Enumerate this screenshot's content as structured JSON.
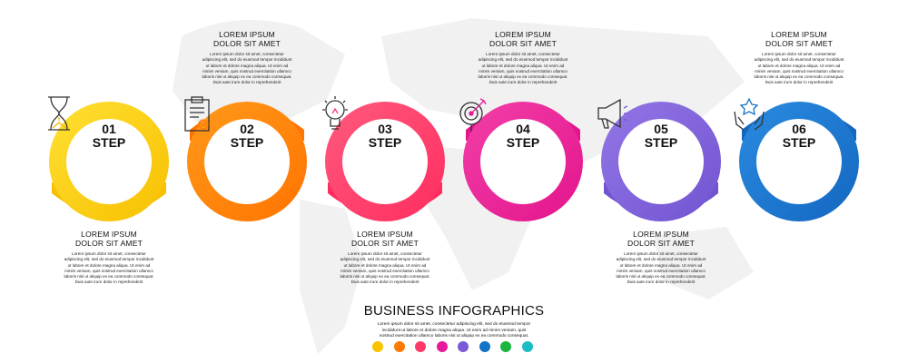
{
  "title": "BUSINESS INFOGRAPHICS",
  "description": [
    "Lorem ipsum dolor sit amet, consectetur adipiscing elit, sed do eiusmod tempor",
    "incididunt ut labore et dolore magna aliqua. Ut enim ad minim veniam, quis",
    "nostrud exercitation ullamco laboris nisi ut aliquip ex ea commodo consequat."
  ],
  "palette": [
    "#f9c300",
    "#ff7a00",
    "#ff3a6a",
    "#e8199a",
    "#7a5ad6",
    "#1473c6",
    "#1bb53f",
    "#1bbcc6"
  ],
  "steps": [
    {
      "number": "01",
      "label": "STEP",
      "icon": "hourglass-icon",
      "color": "#f7c000",
      "light": "#ffe033",
      "flap": "bottom",
      "heading": [
        "LOREM IPSUM",
        "DOLOR SIT AMET"
      ]
    },
    {
      "number": "02",
      "label": "STEP",
      "icon": "clipboard-icon",
      "color": "#ff7300",
      "light": "#ff9a1a",
      "flap": "top",
      "heading": [
        "LOREM IPSUM",
        "DOLOR SIT AMET"
      ]
    },
    {
      "number": "03",
      "label": "STEP",
      "icon": "lightbulb-icon",
      "color": "#ff2d5f",
      "light": "#ff5a7e",
      "flap": "bottom",
      "heading": [
        "LOREM IPSUM",
        "DOLOR SIT AMET"
      ]
    },
    {
      "number": "04",
      "label": "STEP",
      "icon": "target-icon",
      "color": "#e3148c",
      "light": "#f23fa8",
      "flap": "top",
      "heading": [
        "LOREM IPSUM",
        "DOLOR SIT AMET"
      ]
    },
    {
      "number": "05",
      "label": "STEP",
      "icon": "megaphone-icon",
      "color": "#7153d1",
      "light": "#9377e6",
      "flap": "bottom",
      "heading": [
        "LOREM IPSUM",
        "DOLOR SIT AMET"
      ]
    },
    {
      "number": "06",
      "label": "STEP",
      "icon": "hands-star-icon",
      "color": "#1467c0",
      "light": "#2a8be0",
      "flap": "top",
      "heading": [
        "LOREM IPSUM",
        "DOLOR SIT AMET"
      ]
    }
  ],
  "body_text": [
    "Lorem ipsum dolor sit amet, consectetur",
    "adipiscing elit, sed do eiusmod tempor incididunt",
    "ut labore et dolore magna aliqua. Ut enim ad",
    "minim veniam, quis nostrud exercitation ullamco",
    "laboris nisi ut aliquip ex ea commodo consequat.",
    "Duis aute irure dolor in reprehenderit"
  ]
}
